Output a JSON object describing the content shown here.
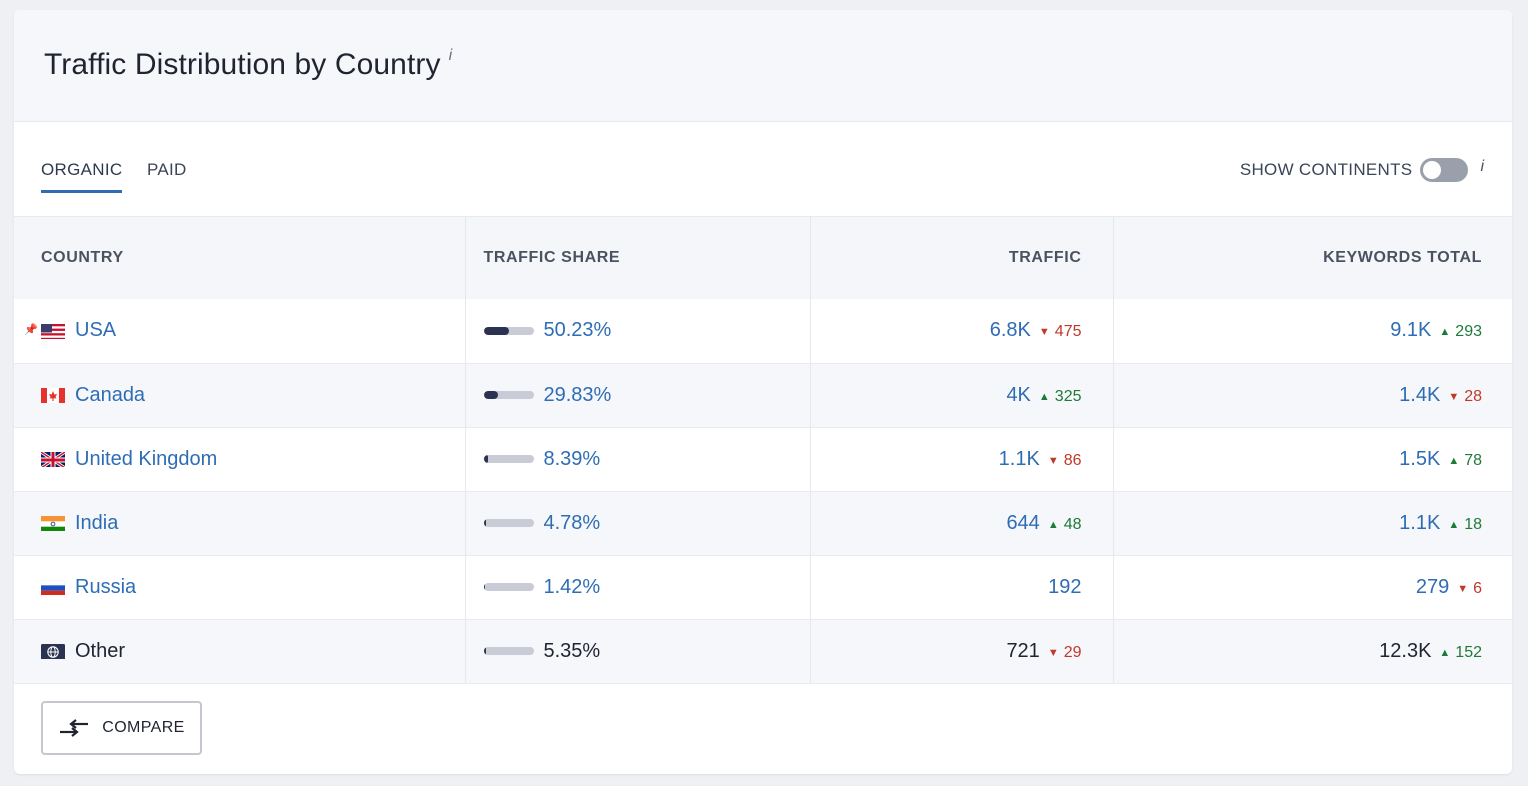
{
  "widget": {
    "title": "Traffic Distribution by Country",
    "title_info": "i"
  },
  "tabs": [
    {
      "label": "ORGANIC",
      "active": true
    },
    {
      "label": "PAID",
      "active": false
    }
  ],
  "continents": {
    "label": "SHOW CONTINENTS",
    "enabled": false,
    "info": "i"
  },
  "table": {
    "headers": {
      "country": "COUNTRY",
      "traffic_share": "TRAFFIC SHARE",
      "traffic": "TRAFFIC",
      "keywords": "KEYWORDS TOTAL"
    },
    "rows": [
      {
        "country": "USA",
        "flag": "us-flag",
        "pinned": true,
        "link": true,
        "share": "50.23%",
        "share_value": 50.23,
        "traffic": "6.8K",
        "traffic_delta": "475",
        "traffic_dir": "down",
        "keywords": "9.1K",
        "keywords_delta": "293",
        "keywords_dir": "up"
      },
      {
        "country": "Canada",
        "flag": "ca-flag",
        "pinned": false,
        "link": true,
        "share": "29.83%",
        "share_value": 29.83,
        "traffic": "4K",
        "traffic_delta": "325",
        "traffic_dir": "up",
        "keywords": "1.4K",
        "keywords_delta": "28",
        "keywords_dir": "down"
      },
      {
        "country": "United Kingdom",
        "flag": "gb-flag",
        "pinned": false,
        "link": true,
        "share": "8.39%",
        "share_value": 8.39,
        "traffic": "1.1K",
        "traffic_delta": "86",
        "traffic_dir": "down",
        "keywords": "1.5K",
        "keywords_delta": "78",
        "keywords_dir": "up"
      },
      {
        "country": "India",
        "flag": "in-flag",
        "pinned": false,
        "link": true,
        "share": "4.78%",
        "share_value": 4.78,
        "traffic": "644",
        "traffic_delta": "48",
        "traffic_dir": "up",
        "keywords": "1.1K",
        "keywords_delta": "18",
        "keywords_dir": "up"
      },
      {
        "country": "Russia",
        "flag": "ru-flag",
        "pinned": false,
        "link": true,
        "share": "1.42%",
        "share_value": 1.42,
        "traffic": "192",
        "traffic_delta": "",
        "traffic_dir": "",
        "keywords": "279",
        "keywords_delta": "6",
        "keywords_dir": "down"
      },
      {
        "country": "Other",
        "flag": "globe-icon",
        "pinned": false,
        "link": false,
        "share": "5.35%",
        "share_value": 5.35,
        "traffic": "721",
        "traffic_delta": "29",
        "traffic_dir": "down",
        "keywords": "12.3K",
        "keywords_delta": "152",
        "keywords_dir": "up"
      }
    ]
  },
  "footer": {
    "compare_label": "COMPARE"
  },
  "colors": {
    "link": "#2e6db4",
    "down": "#c0392b",
    "up": "#1f7a3a",
    "bar_fill": "#2b3350",
    "bar_track": "#c9ccd6"
  }
}
